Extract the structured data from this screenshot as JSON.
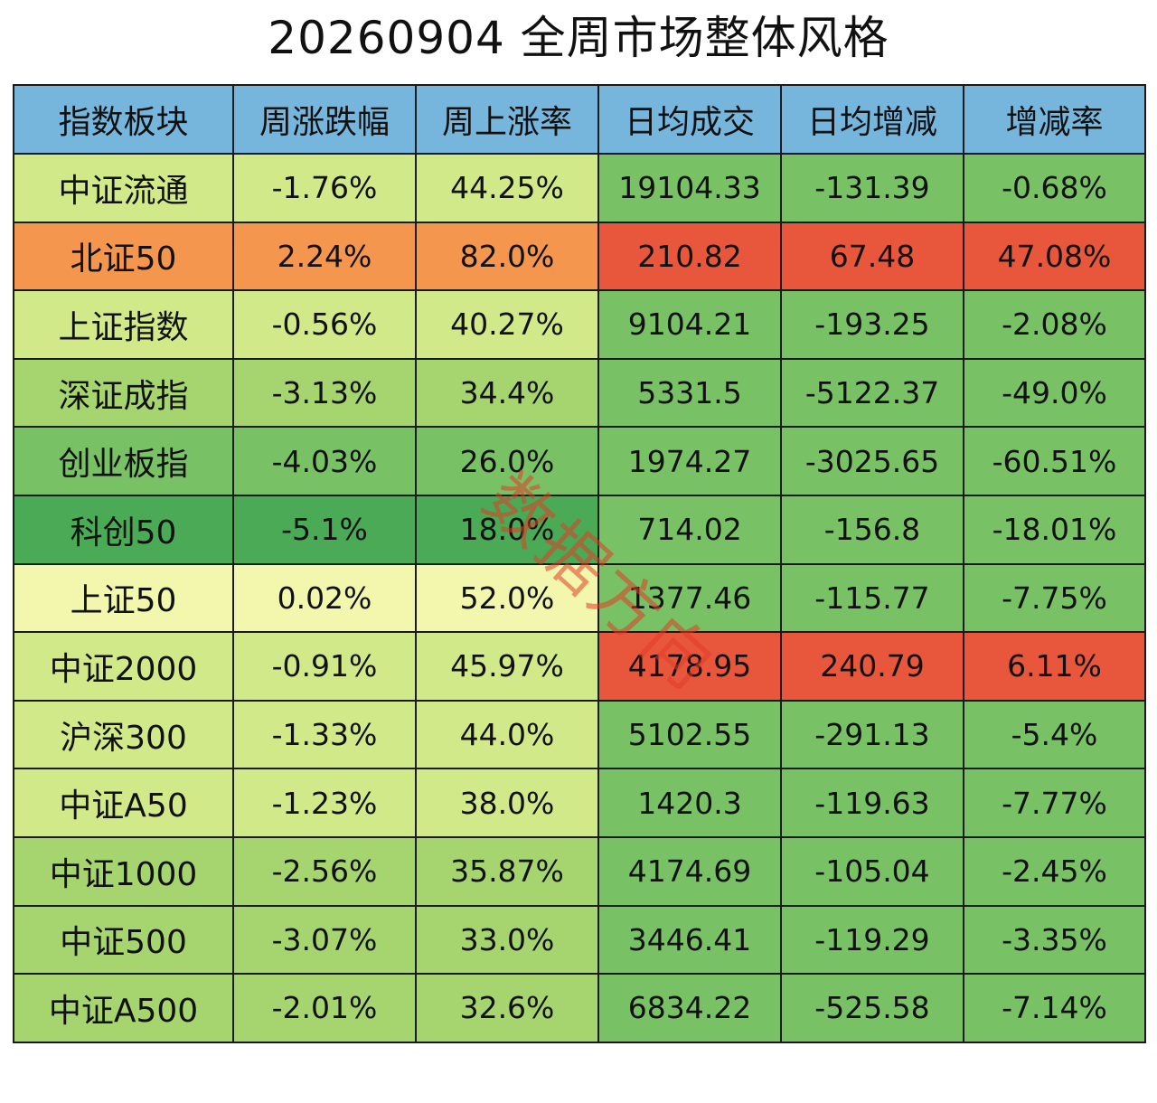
{
  "title": "20260904 全周市场整体风格",
  "watermark": "数据方向",
  "colors": {
    "header": "#76b6dd",
    "dark_green": "#4aaa55",
    "green": "#78c164",
    "mid_green": "#a6d46e",
    "light_green": "#d2e98a",
    "pale_yellow": "#f2f7ad",
    "orange": "#f5964f",
    "red": "#e8563c"
  },
  "chart_data": {
    "type": "table",
    "title": "20260904 全周市场整体风格",
    "columns": [
      "指数板块",
      "周涨跌幅",
      "周上涨率",
      "日均成交",
      "日均增减",
      "增减率"
    ],
    "rows": [
      [
        "中证流通",
        "-1.76%",
        "44.25%",
        "19104.33",
        "-131.39",
        "-0.68%"
      ],
      [
        "北证50",
        "2.24%",
        "82.0%",
        "210.82",
        "67.48",
        "47.08%"
      ],
      [
        "上证指数",
        "-0.56%",
        "40.27%",
        "9104.21",
        "-193.25",
        "-2.08%"
      ],
      [
        "深证成指",
        "-3.13%",
        "34.4%",
        "5331.5",
        "-5122.37",
        "-49.0%"
      ],
      [
        "创业板指",
        "-4.03%",
        "26.0%",
        "1974.27",
        "-3025.65",
        "-60.51%"
      ],
      [
        "科创50",
        "-5.1%",
        "18.0%",
        "714.02",
        "-156.8",
        "-18.01%"
      ],
      [
        "上证50",
        "0.02%",
        "52.0%",
        "1377.46",
        "-115.77",
        "-7.75%"
      ],
      [
        "中证2000",
        "-0.91%",
        "45.97%",
        "4178.95",
        "240.79",
        "6.11%"
      ],
      [
        "沪深300",
        "-1.33%",
        "44.0%",
        "5102.55",
        "-291.13",
        "-5.4%"
      ],
      [
        "中证A50",
        "-1.23%",
        "38.0%",
        "1420.3",
        "-119.63",
        "-7.77%"
      ],
      [
        "中证1000",
        "-2.56%",
        "35.87%",
        "4174.69",
        "-105.04",
        "-2.45%"
      ],
      [
        "中证500",
        "-3.07%",
        "33.0%",
        "3446.41",
        "-119.29",
        "-3.35%"
      ],
      [
        "中证A500",
        "-2.01%",
        "32.6%",
        "6834.22",
        "-525.58",
        "-7.14%"
      ]
    ],
    "row_fill_left": [
      "#d2e98a",
      "#f5964f",
      "#d2e98a",
      "#a6d46e",
      "#78c164",
      "#4aaa55",
      "#f2f7ad",
      "#d2e98a",
      "#d2e98a",
      "#d2e98a",
      "#a6d46e",
      "#a6d46e",
      "#a6d46e"
    ],
    "row_fill_right": [
      "#78c164",
      "#e8563c",
      "#78c164",
      "#78c164",
      "#78c164",
      "#78c164",
      "#78c164",
      "#e8563c",
      "#78c164",
      "#78c164",
      "#78c164",
      "#78c164",
      "#78c164"
    ]
  }
}
